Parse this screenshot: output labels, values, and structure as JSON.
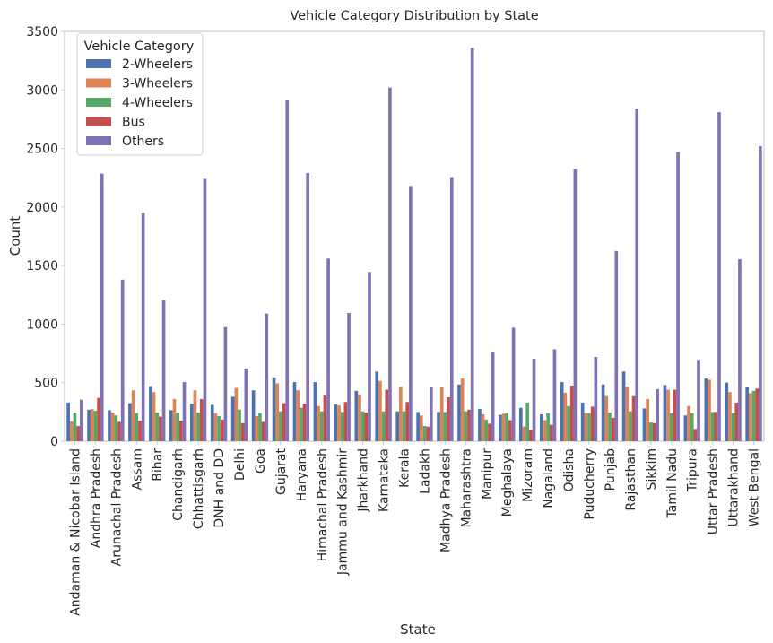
{
  "chart_data": {
    "type": "bar",
    "title": "Vehicle Category Distribution by State",
    "xlabel": "State",
    "ylabel": "Count",
    "ylim": [
      0,
      3500
    ],
    "yticks": [
      0,
      500,
      1000,
      1500,
      2000,
      2500,
      3000,
      3500
    ],
    "grid": false,
    "legend": {
      "title": "Vehicle Category",
      "placement": "top-left"
    },
    "categories": [
      "Andaman & Nicobar Island",
      "Andhra Pradesh",
      "Arunachal Pradesh",
      "Assam",
      "Bihar",
      "Chandigarh",
      "Chhattisgarh",
      "DNH and DD",
      "Delhi",
      "Goa",
      "Gujarat",
      "Haryana",
      "Himachal Pradesh",
      "Jammu and Kashmir",
      "Jharkhand",
      "Karnataka",
      "Kerala",
      "Ladakh",
      "Madhya Pradesh",
      "Maharashtra",
      "Manipur",
      "Meghalaya",
      "Mizoram",
      "Nagaland",
      "Odisha",
      "Puducherry",
      "Punjab",
      "Rajasthan",
      "Sikkim",
      "Tamil Nadu",
      "Tripura",
      "Uttar Pradesh",
      "Uttarakhand",
      "West Bengal"
    ],
    "series": [
      {
        "name": "2-Wheelers",
        "color": "#4c72b0",
        "values": [
          330,
          270,
          265,
          325,
          470,
          265,
          320,
          310,
          380,
          435,
          545,
          505,
          505,
          315,
          430,
          595,
          255,
          250,
          250,
          485,
          275,
          225,
          285,
          230,
          505,
          330,
          485,
          595,
          280,
          480,
          220,
          535,
          500,
          460
        ]
      },
      {
        "name": "3-Wheelers",
        "color": "#dd8452",
        "values": [
          170,
          275,
          245,
          435,
          420,
          360,
          435,
          240,
          455,
          215,
          495,
          435,
          300,
          305,
          400,
          515,
          465,
          220,
          460,
          535,
          230,
          235,
          125,
          180,
          415,
          240,
          385,
          465,
          360,
          440,
          300,
          525,
          420,
          410
        ]
      },
      {
        "name": "4-Wheelers",
        "color": "#55a868",
        "values": [
          245,
          260,
          220,
          240,
          245,
          245,
          245,
          215,
          270,
          240,
          255,
          285,
          255,
          250,
          255,
          255,
          255,
          130,
          250,
          255,
          185,
          240,
          330,
          240,
          300,
          240,
          245,
          255,
          160,
          240,
          240,
          250,
          240,
          430
        ]
      },
      {
        "name": "Bus",
        "color": "#c44e52",
        "values": [
          130,
          370,
          165,
          175,
          210,
          175,
          360,
          185,
          155,
          165,
          325,
          320,
          390,
          335,
          245,
          440,
          335,
          125,
          375,
          270,
          150,
          180,
          95,
          140,
          475,
          295,
          200,
          385,
          155,
          440,
          105,
          250,
          330,
          450
        ]
      },
      {
        "name": "Others",
        "color": "#8172b3",
        "values": [
          355,
          2285,
          1380,
          1950,
          1205,
          505,
          2240,
          975,
          620,
          1090,
          2910,
          2290,
          1560,
          1095,
          1445,
          3020,
          2180,
          460,
          2255,
          3360,
          765,
          970,
          705,
          785,
          2325,
          720,
          1625,
          2840,
          445,
          2470,
          695,
          2810,
          1555,
          2520
        ]
      }
    ]
  }
}
